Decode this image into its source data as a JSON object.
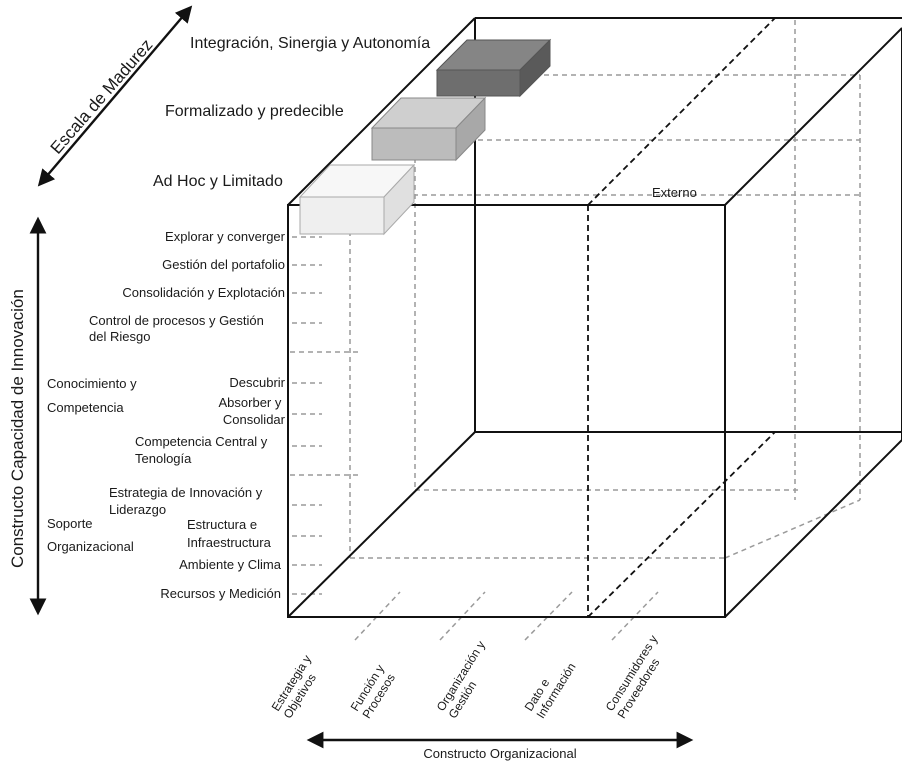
{
  "maturity_scale": {
    "title": "Escala de Madurez",
    "levels": [
      {
        "label": "Ad Hoc y Limitado",
        "color": "#efefef"
      },
      {
        "label": "Formalizado y predecible",
        "color": "#bcbcbc"
      },
      {
        "label": "Integración, Sinergia y Autonomía",
        "color": "#6e6e6e"
      }
    ]
  },
  "innovation_construct": {
    "title": "Constructo Capacidad de Innovación",
    "groups": [
      {
        "name": "",
        "items": [
          "Explorar y converger",
          "Gestión del portafolio",
          "Consolidación y Explotación",
          "Control de procesos y Gestión del Riesgo"
        ]
      },
      {
        "name": "Conocimiento y Competencia",
        "items": [
          "Descubrir",
          "Absorber y Consolidar",
          "Competencia Central y Tenología"
        ]
      },
      {
        "name": "Soporte Organizacional",
        "items": [
          "Estrategia de Innovación y Liderazgo",
          "Estructura e Infraestructura",
          "Ambiente y Clima",
          "Recursos y Medición"
        ]
      }
    ]
  },
  "organizational_construct": {
    "title": "Constructo Organizacional",
    "items": [
      "Estrategia y Objetivos",
      "Función y Procesos",
      "Organización y Gestión",
      "Dato e Información",
      "Consumidores y Proveedores"
    ]
  },
  "external_label": "Externo",
  "colors": {
    "line": "#111111",
    "dashed": "#9a9a9a"
  }
}
